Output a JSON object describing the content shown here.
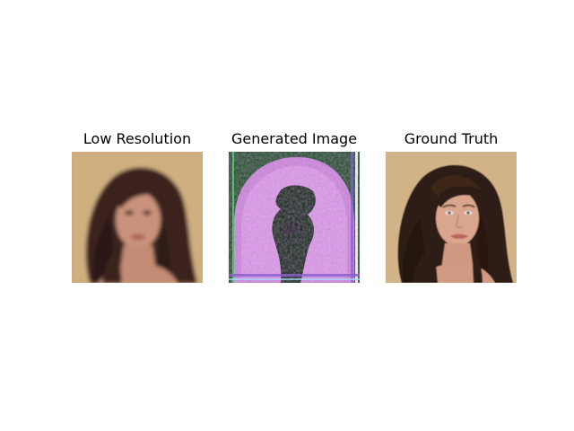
{
  "panels": [
    {
      "title": "Low Resolution",
      "image_description": "low-resolution blurry portrait of a woman with long dark brown hair against a tan background"
    },
    {
      "title": "Generated Image",
      "image_description": "artifact-filled generated image with green, pink and purple noise and a dark arch-shaped silhouette"
    },
    {
      "title": "Ground Truth",
      "image_description": "sharp portrait of a woman with long dark brown hair against a tan textured wall"
    }
  ]
}
